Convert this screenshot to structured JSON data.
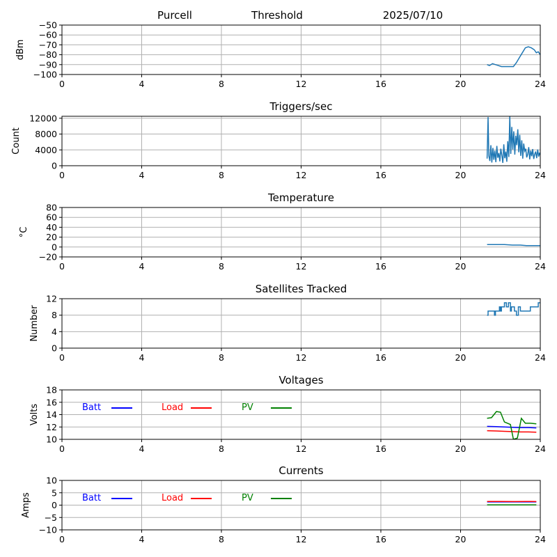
{
  "header": {
    "station": "Purcell",
    "mode": "Threshold",
    "date": "2025/07/10"
  },
  "x_axis": {
    "ticks": [
      0,
      4,
      8,
      12,
      16,
      20,
      24
    ],
    "range": [
      0,
      24
    ]
  },
  "colors": {
    "series_default": "#1f77b4",
    "batt": "#0000ff",
    "load": "#ff0000",
    "pv": "#008000",
    "grid": "#b0b0b0"
  },
  "legend_labels": {
    "batt": "Batt",
    "load": "Load",
    "pv": "PV"
  },
  "chart_data": [
    {
      "id": "rssi",
      "type": "line",
      "title": "",
      "ylabel": "dBm",
      "xlabel": "",
      "grid": true,
      "ylim": [
        -100,
        -50
      ],
      "yticks": [
        -50,
        -60,
        -70,
        -80,
        -90,
        -100
      ],
      "ytick_labels": [
        "−50",
        "−60",
        "−70",
        "−80",
        "−90",
        "−100"
      ],
      "series": [
        {
          "color": "#1f77b4",
          "x": [
            21.33,
            21.45,
            21.6,
            21.75,
            21.9,
            22.05,
            22.2,
            22.35,
            22.5,
            22.65,
            22.8,
            22.95,
            23.1,
            23.25,
            23.4,
            23.55,
            23.7,
            23.8,
            23.9,
            24.0
          ],
          "y": [
            -90,
            -91,
            -89,
            -90,
            -91,
            -92,
            -92,
            -92,
            -92,
            -92,
            -88,
            -83,
            -78,
            -73,
            -72,
            -73,
            -75,
            -78,
            -77,
            -80
          ]
        }
      ]
    },
    {
      "id": "triggers",
      "type": "line",
      "title": "Triggers/sec",
      "ylabel": "Count",
      "xlabel": "",
      "grid": true,
      "ylim": [
        0,
        12500
      ],
      "yticks": [
        0,
        4000,
        8000,
        12000
      ],
      "ytick_labels": [
        "0",
        "4000",
        "8000",
        "12000"
      ],
      "series": [
        {
          "color": "#1f77b4",
          "x": [
            21.33,
            21.38,
            21.42,
            21.47,
            21.52,
            21.57,
            21.62,
            21.67,
            21.72,
            21.77,
            21.82,
            21.87,
            21.92,
            21.97,
            22.02,
            22.07,
            22.12,
            22.17,
            22.22,
            22.27,
            22.32,
            22.37,
            22.42,
            22.47,
            22.52,
            22.57,
            22.62,
            22.67,
            22.72,
            22.77,
            22.82,
            22.87,
            22.92,
            22.97,
            23.02,
            23.07,
            23.12,
            23.17,
            23.22,
            23.27,
            23.32,
            23.37,
            23.42,
            23.47,
            23.52,
            23.57,
            23.62,
            23.67,
            23.72,
            23.77,
            23.82,
            23.87,
            23.92,
            23.97,
            24.0
          ],
          "y": [
            1800,
            12300,
            2500,
            1200,
            5200,
            800,
            4500,
            1500,
            3800,
            900,
            5000,
            2000,
            3200,
            1100,
            4300,
            2600,
            700,
            5400,
            1900,
            3600,
            1000,
            6200,
            2200,
            12500,
            3000,
            9800,
            4100,
            8700,
            2800,
            7600,
            5200,
            9200,
            3400,
            7800,
            2500,
            6400,
            1800,
            5600,
            3700,
            4300,
            2100,
            2900,
            4700,
            1600,
            3800,
            2400,
            4200,
            1700,
            2900,
            3600,
            1900,
            4100,
            2300,
            3300,
            2700
          ]
        }
      ]
    },
    {
      "id": "temperature",
      "type": "line",
      "title": "Temperature",
      "ylabel": "°C",
      "xlabel": "",
      "grid": true,
      "ylim": [
        -20,
        80
      ],
      "yticks": [
        80,
        60,
        40,
        20,
        0,
        -20
      ],
      "ytick_labels": [
        "80",
        "60",
        "40",
        "20",
        "0",
        "−20"
      ],
      "series": [
        {
          "color": "#1f77b4",
          "x": [
            21.33,
            21.8,
            22.2,
            22.6,
            23.0,
            23.3,
            23.6,
            24.0
          ],
          "y": [
            5,
            5,
            5,
            4,
            4,
            3,
            3,
            3
          ]
        }
      ]
    },
    {
      "id": "satellites",
      "type": "line",
      "title": "Satellites Tracked",
      "ylabel": "Number",
      "xlabel": "",
      "grid": true,
      "ylim": [
        0,
        12
      ],
      "yticks": [
        12,
        8,
        4,
        0
      ],
      "ytick_labels": [
        "12",
        "8",
        "4",
        "0"
      ],
      "series": [
        {
          "color": "#1f77b4",
          "x": [
            21.33,
            21.38,
            21.38,
            21.7,
            21.7,
            21.75,
            21.75,
            21.95,
            21.95,
            22.0,
            22.0,
            22.05,
            22.05,
            22.2,
            22.2,
            22.3,
            22.3,
            22.4,
            22.4,
            22.5,
            22.5,
            22.55,
            22.55,
            22.7,
            22.7,
            22.8,
            22.8,
            22.9,
            22.9,
            23.0,
            23.0,
            23.5,
            23.5,
            23.9,
            23.9,
            24.0
          ],
          "y": [
            8,
            8,
            9,
            9,
            8,
            8,
            9,
            9,
            10,
            10,
            9,
            9,
            10,
            10,
            11,
            11,
            10,
            10,
            11,
            11,
            9,
            9,
            10,
            10,
            9,
            9,
            8,
            8,
            10,
            10,
            9,
            9,
            10,
            10,
            11,
            11
          ]
        }
      ]
    },
    {
      "id": "voltages",
      "type": "line",
      "title": "Voltages",
      "ylabel": "Volts",
      "xlabel": "",
      "grid": true,
      "ylim": [
        10,
        18
      ],
      "yticks": [
        18,
        16,
        14,
        12,
        10
      ],
      "ytick_labels": [
        "18",
        "16",
        "14",
        "12",
        "10"
      ],
      "legend": [
        "batt",
        "load",
        "pv"
      ],
      "series": [
        {
          "key": "batt",
          "color": "#0000ff",
          "x": [
            21.33,
            21.8,
            22.2,
            22.6,
            23.0,
            23.4,
            23.8
          ],
          "y": [
            12.1,
            12.05,
            12.0,
            11.95,
            11.9,
            11.9,
            11.85
          ]
        },
        {
          "key": "load",
          "color": "#ff0000",
          "x": [
            21.33,
            21.8,
            22.2,
            22.6,
            23.0,
            23.4,
            23.8
          ],
          "y": [
            11.4,
            11.35,
            11.3,
            11.25,
            11.2,
            11.2,
            11.15
          ]
        },
        {
          "key": "pv",
          "color": "#008000",
          "x": [
            21.33,
            21.55,
            21.8,
            22.0,
            22.2,
            22.5,
            22.65,
            22.85,
            23.05,
            23.25,
            23.5,
            23.8
          ],
          "y": [
            13.4,
            13.5,
            14.5,
            14.4,
            12.8,
            12.4,
            10.0,
            10.2,
            13.4,
            12.6,
            12.6,
            12.5
          ]
        }
      ]
    },
    {
      "id": "currents",
      "type": "line",
      "title": "Currents",
      "ylabel": "Amps",
      "xlabel": "",
      "grid": true,
      "ylim": [
        -10,
        10
      ],
      "yticks": [
        10,
        5,
        0,
        -5,
        -10
      ],
      "ytick_labels": [
        "10",
        "5",
        "0",
        "−5",
        "−10"
      ],
      "legend": [
        "batt",
        "load",
        "pv"
      ],
      "series": [
        {
          "key": "batt",
          "color": "#0000ff",
          "x": [
            21.33,
            22.0,
            22.7,
            23.3,
            23.8
          ],
          "y": [
            1.3,
            1.3,
            1.3,
            1.3,
            1.3
          ]
        },
        {
          "key": "load",
          "color": "#ff0000",
          "x": [
            21.33,
            22.0,
            22.7,
            23.3,
            23.8
          ],
          "y": [
            1.5,
            1.5,
            1.45,
            1.5,
            1.45
          ]
        },
        {
          "key": "pv",
          "color": "#008000",
          "x": [
            21.33,
            22.0,
            22.7,
            23.3,
            23.8
          ],
          "y": [
            0.1,
            0.1,
            0.1,
            0.1,
            0.1
          ]
        }
      ]
    }
  ]
}
